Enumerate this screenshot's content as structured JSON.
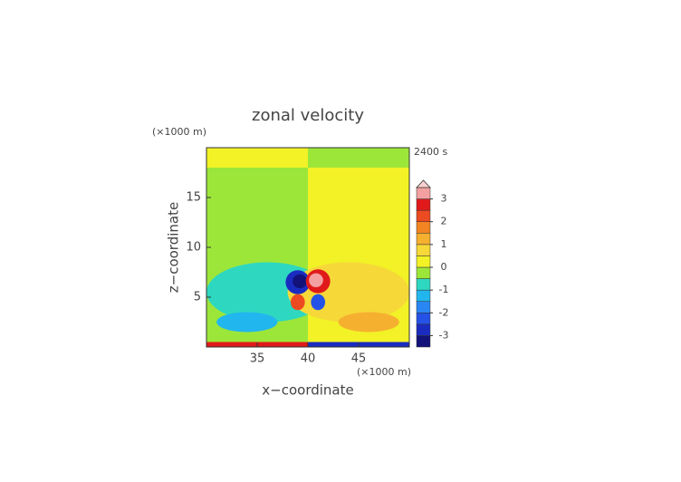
{
  "chart_data": {
    "type": "contour",
    "title": "zonal velocity",
    "xlabel": "x−coordinate",
    "ylabel": "z−coordinate",
    "x_unit": "(×1000 m)",
    "y_unit": "(×1000 m)",
    "time_label": "2400 s",
    "xlim": [
      30,
      50
    ],
    "xticks": [
      35,
      40,
      45
    ],
    "ylim": [
      0,
      20
    ],
    "yticks": [
      5,
      10,
      15
    ],
    "colorbar": {
      "levels": [
        -3.5,
        -3,
        -2.5,
        -2,
        -1.5,
        -1,
        -0.5,
        0,
        0.5,
        1,
        1.5,
        2,
        2.5,
        3,
        3.5
      ],
      "colors": [
        "#12127a",
        "#1a2cc0",
        "#2452e6",
        "#2a86f2",
        "#22b6ee",
        "#2ed8c0",
        "#9ce63a",
        "#f2f226",
        "#f6d838",
        "#f6b030",
        "#f28422",
        "#ec4a20",
        "#e01a1a",
        "#f4a0a0"
      ],
      "ticks": [
        -3,
        -2,
        -1,
        0,
        1,
        2,
        3
      ],
      "extend_color": "#f8d0d0"
    },
    "field": [
      {
        "x": [
          30,
          40
        ],
        "z": [
          0,
          18
        ],
        "value": -0.3
      },
      {
        "x": [
          40,
          50
        ],
        "z": [
          0,
          18
        ],
        "value": 0.3
      },
      {
        "x": [
          30,
          40
        ],
        "z": [
          18,
          20
        ],
        "value": 0.3
      },
      {
        "x": [
          40,
          50
        ],
        "z": [
          18,
          20
        ],
        "value": -0.3
      },
      {
        "x": [
          30,
          40
        ],
        "z": [
          0,
          0.5
        ],
        "value": 2.7
      },
      {
        "x": [
          40,
          50
        ],
        "z": [
          0,
          0.5
        ],
        "value": -2.7
      }
    ],
    "blobs": [
      {
        "x": 36,
        "z": 5.5,
        "rx": 6,
        "rz": 3,
        "value": -0.8
      },
      {
        "x": 44,
        "z": 5.5,
        "rx": 6,
        "rz": 3,
        "value": 0.8
      },
      {
        "x": 34,
        "z": 2.5,
        "rx": 3,
        "rz": 1,
        "value": -1.3
      },
      {
        "x": 46,
        "z": 2.5,
        "rx": 3,
        "rz": 1,
        "value": 1.3
      },
      {
        "x": 39,
        "z": 6.5,
        "rx": 1.2,
        "rz": 1.2,
        "value": -2.7
      },
      {
        "x": 39.2,
        "z": 6.6,
        "rx": 0.7,
        "rz": 0.7,
        "value": -3.3
      },
      {
        "x": 41,
        "z": 6.6,
        "rx": 1.2,
        "rz": 1.2,
        "value": 2.7
      },
      {
        "x": 40.8,
        "z": 6.7,
        "rx": 0.7,
        "rz": 0.7,
        "value": 3.3
      },
      {
        "x": 39,
        "z": 4.5,
        "rx": 0.7,
        "rz": 0.8,
        "value": 2.2
      },
      {
        "x": 41,
        "z": 4.5,
        "rx": 0.7,
        "rz": 0.8,
        "value": -2.2
      }
    ]
  }
}
